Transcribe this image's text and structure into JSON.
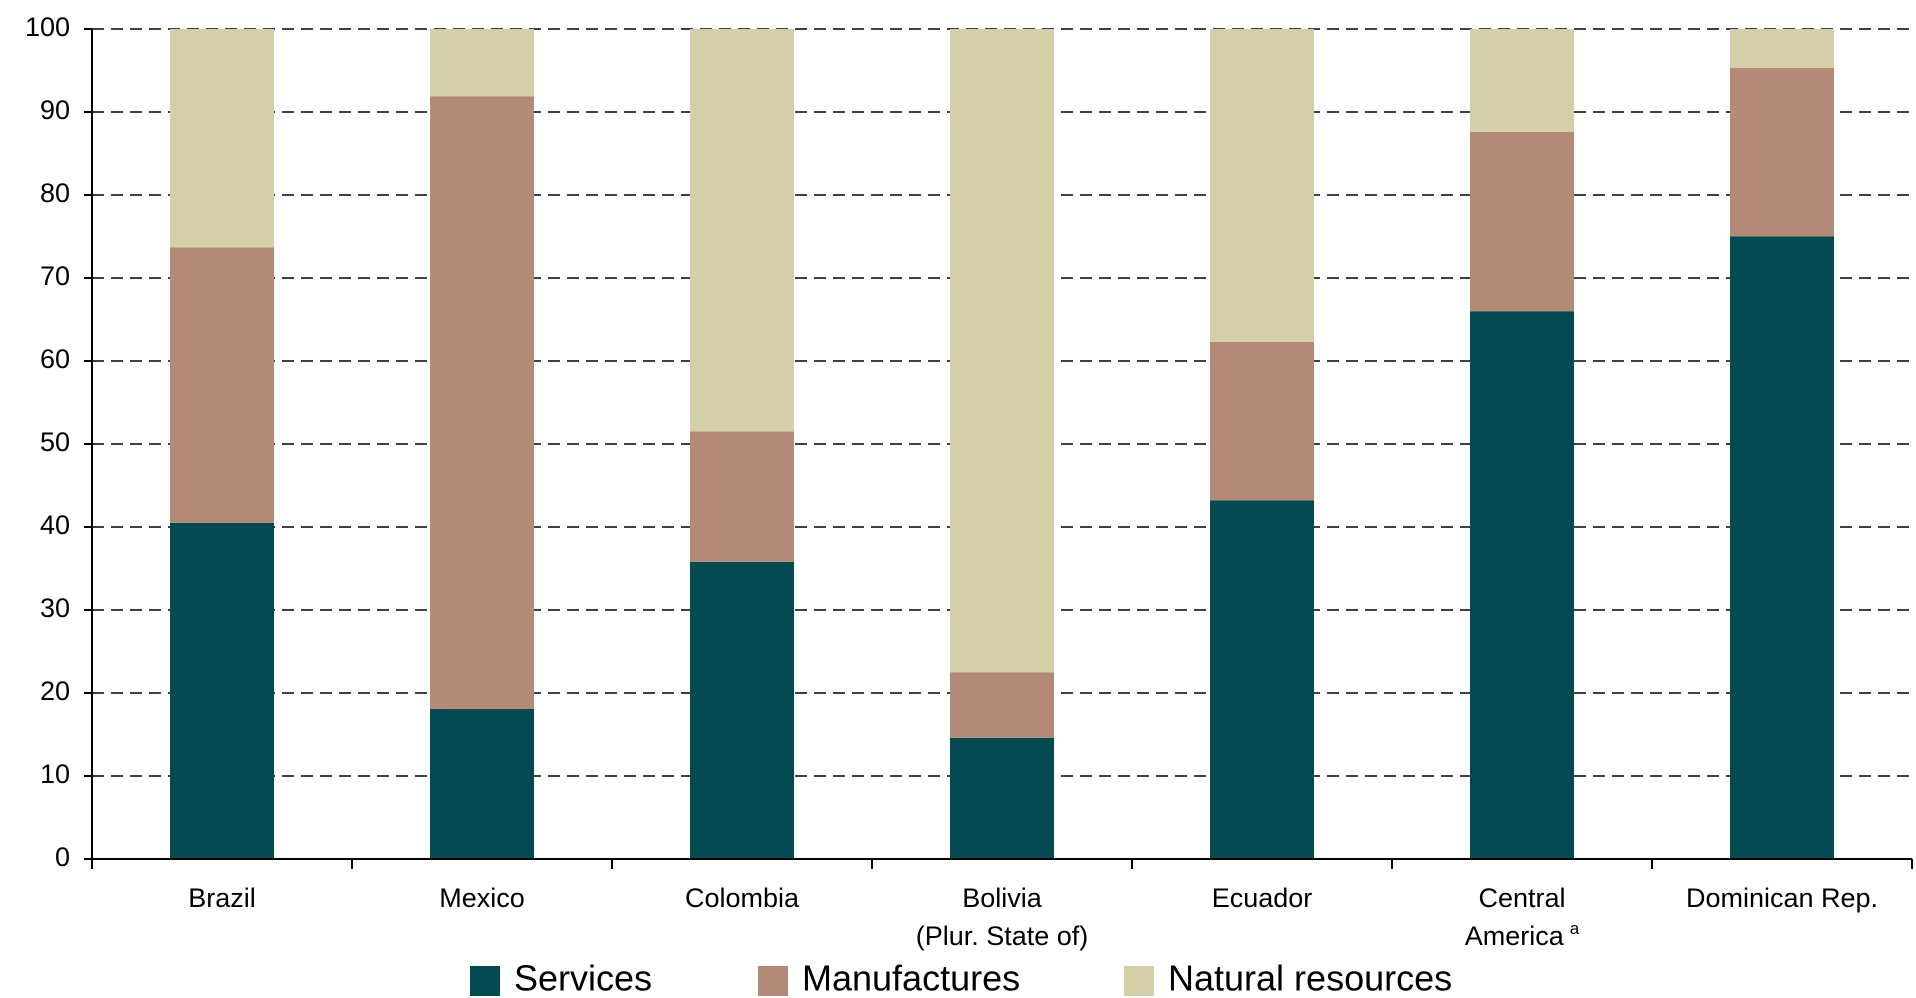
{
  "chart_data": {
    "type": "stacked_bar",
    "categories": [
      [
        "Brazil"
      ],
      [
        "Mexico"
      ],
      [
        "Colombia"
      ],
      [
        "Bolivia",
        "(Plur. State of)"
      ],
      [
        "Ecuador"
      ],
      [
        "Central",
        "America"
      ],
      [
        "Dominican Rep."
      ]
    ],
    "category_footnotes": [
      null,
      null,
      null,
      null,
      null,
      "a",
      null
    ],
    "series": [
      {
        "name": "Services",
        "color": "#024a50",
        "values": [
          40.5,
          18.1,
          35.8,
          14.6,
          43.2,
          66.0,
          75.0
        ]
      },
      {
        "name": "Manufactures",
        "color": "#b38a78",
        "values": [
          33.2,
          73.8,
          15.7,
          7.9,
          19.1,
          21.6,
          20.3
        ]
      },
      {
        "name": "Natural resources",
        "color": "#d3cfa9",
        "values": [
          26.3,
          8.1,
          48.5,
          77.5,
          37.7,
          12.4,
          4.7
        ]
      }
    ],
    "ylim": [
      0,
      100
    ],
    "yticks": [
      0,
      10,
      20,
      30,
      40,
      50,
      60,
      70,
      80,
      90,
      100
    ],
    "grid": true,
    "legend": "bottom"
  }
}
